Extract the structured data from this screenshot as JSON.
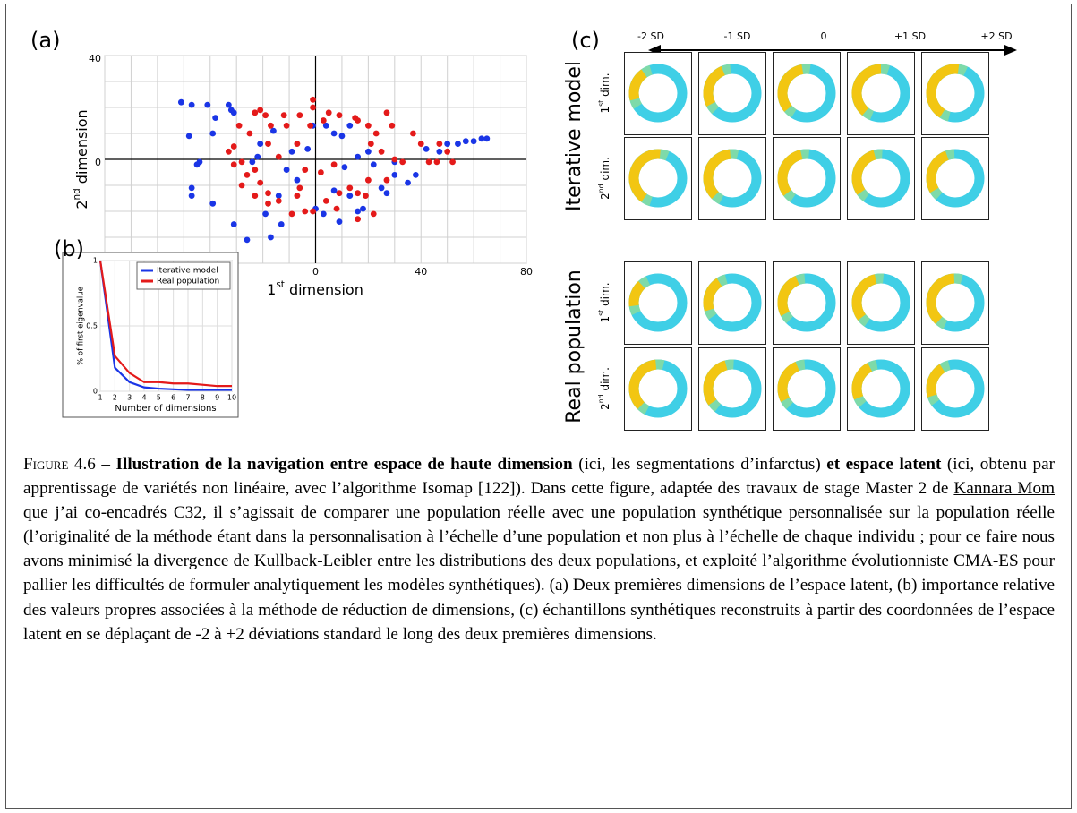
{
  "chart_data": [
    {
      "type": "scatter",
      "panel": "(a)",
      "x_label": [
        "1",
        "st",
        " dimension"
      ],
      "y_label": [
        "2",
        "nd",
        " dimension"
      ],
      "xlim": [
        -80,
        80
      ],
      "ylim": [
        -40,
        40
      ],
      "xticks": [
        0,
        40,
        80
      ],
      "yticks": [
        40,
        0
      ],
      "xgrid": [
        -80,
        -70,
        -60,
        -50,
        -40,
        -30,
        -20,
        -10,
        0,
        10,
        20,
        30,
        40,
        50,
        60,
        70,
        80
      ],
      "ygrid": [
        -40,
        -30,
        -20,
        -10,
        0,
        10,
        20,
        30,
        40
      ],
      "series": [
        {
          "color": "#1a35e6",
          "x": [
            -51,
            -47,
            -41,
            -33,
            -32,
            -31,
            -48,
            -38,
            -39,
            -44,
            -45,
            -47,
            -47,
            -39,
            -31,
            -26,
            -17,
            -13,
            -19,
            -14,
            -11,
            -9,
            -3,
            -7,
            0,
            3,
            9,
            16,
            18,
            13,
            7,
            11,
            16,
            10,
            7,
            4,
            13,
            20,
            22,
            25,
            27,
            30,
            30,
            35,
            38,
            42,
            47,
            50,
            54,
            57,
            60,
            63,
            65,
            -22,
            -24,
            -1,
            -16,
            -21
          ],
          "values": [
            22,
            21,
            21,
            21,
            19,
            18,
            9,
            16,
            10,
            -1,
            -2,
            -11,
            -14,
            -17,
            -25,
            -31,
            -30,
            -25,
            -21,
            -14,
            -4,
            3,
            4,
            -8,
            -19,
            -21,
            -24,
            -20,
            -19,
            -14,
            -12,
            -3,
            1,
            9,
            10,
            13,
            13,
            3,
            -2,
            -11,
            -13,
            -6,
            -1,
            -9,
            -6,
            4,
            3,
            6,
            6,
            7,
            7,
            8,
            8,
            1,
            -1,
            13,
            11,
            6
          ]
        },
        {
          "color": "#e41a1a",
          "x": [
            -29,
            -25,
            -23,
            -21,
            -19,
            -17,
            -12,
            -11,
            -6,
            -2,
            -1,
            -1,
            3,
            5,
            9,
            15,
            16,
            20,
            23,
            27,
            29,
            21,
            25,
            30,
            33,
            37,
            40,
            43,
            46,
            50,
            52,
            47,
            -31,
            -33,
            -31,
            -28,
            -26,
            -28,
            -21,
            -18,
            -14,
            -18,
            -23,
            -7,
            -6,
            -4,
            -1,
            4,
            8,
            9,
            13,
            16,
            20,
            22,
            16,
            19,
            -4,
            2,
            7,
            -7,
            -18,
            -14,
            -23,
            -9,
            27
          ],
          "values": [
            13,
            10,
            18,
            19,
            17,
            13,
            17,
            13,
            17,
            13,
            23,
            20,
            15,
            18,
            17,
            16,
            15,
            13,
            10,
            18,
            13,
            6,
            3,
            0,
            -1,
            10,
            6,
            -1,
            -1,
            3,
            -1,
            6,
            5,
            3,
            -2,
            -1,
            -6,
            -10,
            -9,
            -13,
            -16,
            -17,
            -14,
            -14,
            -11,
            -20,
            -20,
            -16,
            -19,
            -13,
            -11,
            -13,
            -8,
            -21,
            -23,
            -14,
            -4,
            -5,
            -2,
            6,
            6,
            1,
            -4,
            -21,
            -8
          ]
        }
      ]
    },
    {
      "type": "line",
      "panel": "(b)",
      "x_label": "Number of dimensions",
      "y_label": "% of first eigenvalue",
      "x": [
        1,
        2,
        3,
        4,
        5,
        6,
        7,
        8,
        9,
        10
      ],
      "xlim": [
        1,
        10
      ],
      "ylim": [
        0,
        1
      ],
      "xticks": [
        1,
        2,
        3,
        4,
        5,
        6,
        7,
        8,
        9,
        10
      ],
      "yticks": [
        0,
        0.5,
        1
      ],
      "grid": true,
      "legend": "top-right",
      "series": [
        {
          "name": "Iterative model",
          "color": "#1a35e6",
          "values": [
            1,
            0.18,
            0.07,
            0.03,
            0.02,
            0.015,
            0.01,
            0.01,
            0.01,
            0.01
          ]
        },
        {
          "name": "Real population",
          "color": "#e41a1a",
          "values": [
            1,
            0.27,
            0.14,
            0.07,
            0.07,
            0.06,
            0.06,
            0.05,
            0.04,
            0.04
          ]
        }
      ]
    }
  ],
  "panel_c": {
    "panel": "(c)",
    "columns": [
      "-2 SD",
      "-1 SD",
      "0",
      "+1 SD",
      "+2 SD"
    ],
    "groups": [
      "Iterative model",
      "Real population"
    ],
    "row_labels": [
      [
        "1",
        "st",
        " dim."
      ],
      [
        "2",
        "nd",
        " dim."
      ]
    ]
  },
  "caption": {
    "label": "Figure 4.6 –",
    "bold_1": "Illustration de la navigation entre espace de haute dimension",
    "text_1": " (ici, les segmentations d’infarctus) ",
    "bold_2": "et espace latent",
    "text_2": " (ici, obtenu par apprentissage de variétés non linéaire, avec l’algorithme Isomap [122]). Dans cette figure, adaptée des travaux de stage Master 2 de ",
    "link": "Kannara Mom",
    "text_3": " que j’ai co-encadrés C32, il s’agissait de comparer une population réelle avec une population synthétique personnalisée sur la population réelle (l’originalité de la méthode étant dans la personnalisation à l’échelle d’une population et non plus à l’échelle de chaque individu ; pour ce faire nous avons minimisé la divergence de Kullback-Leibler entre les distributions des deux populations, et exploité l’algorithme évolutionniste CMA-ES pour pallier les difficultés de formuler analytiquement les modèles synthétiques). (a) Deux premières dimensions de l’espace latent, (b) importance relative des valeurs propres associées à la méthode de réduction de dimensions, (c) échantillons synthétiques reconstruits à partir des coordonnées de l’espace latent en se déplaçant de -2 à +2 déviations standard le long des deux premières dimensions."
  }
}
